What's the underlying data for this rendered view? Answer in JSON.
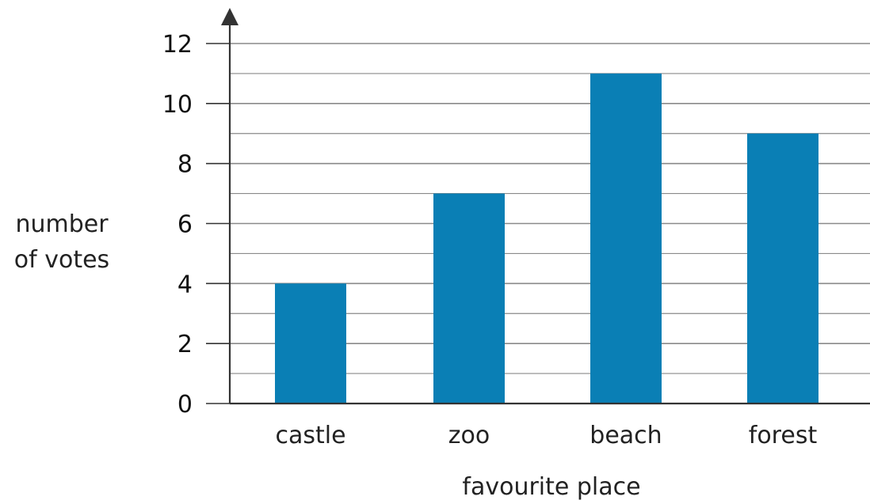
{
  "chart_data": {
    "type": "bar",
    "categories": [
      "castle",
      "zoo",
      "beach",
      "forest"
    ],
    "values": [
      4,
      7,
      11,
      9
    ],
    "xlabel": "favourite place",
    "ylabel": [
      "number",
      "of votes"
    ],
    "yticks": [
      "0",
      "2",
      "4",
      "6",
      "8",
      "10",
      "12"
    ],
    "ylim": [
      0,
      12
    ],
    "minor_gridlines_every": 1,
    "grid": true,
    "legend": "none",
    "colors": {
      "bar": "#0a7fb5",
      "grid": "#8a8a8a",
      "axis": "#333333"
    }
  }
}
